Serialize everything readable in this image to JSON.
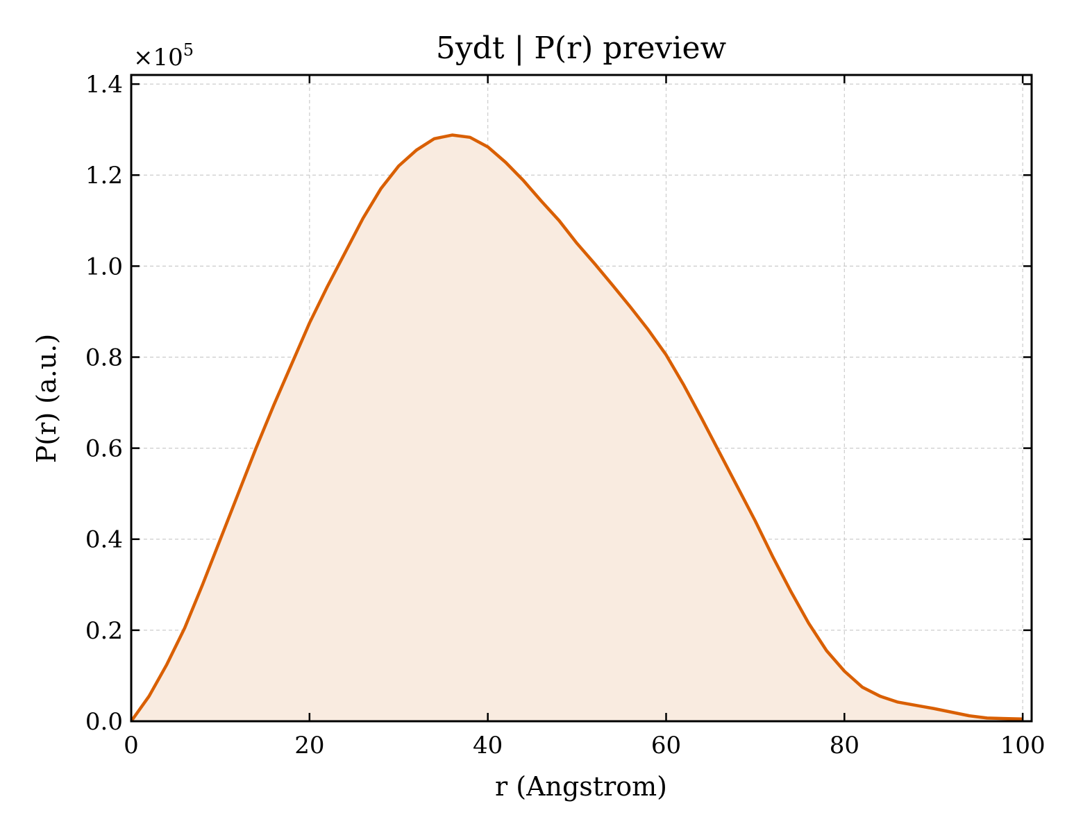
{
  "chart_data": {
    "type": "area",
    "title": "5ydt | P(r) preview",
    "xlabel": "r (Angstrom)",
    "ylabel": "P(r) (a.u.)",
    "y_scale_multiplier": "×10",
    "y_scale_exponent": "5",
    "xlim": [
      0,
      101
    ],
    "ylim": [
      0,
      1.42
    ],
    "xticks": [
      0,
      20,
      40,
      60,
      80,
      100
    ],
    "xtick_labels": [
      "0",
      "20",
      "40",
      "60",
      "80",
      "100"
    ],
    "yticks": [
      0.0,
      0.2,
      0.4,
      0.6,
      0.8,
      1.0,
      1.2,
      1.4
    ],
    "ytick_labels": [
      "0.0",
      "0.2",
      "0.4",
      "0.6",
      "0.8",
      "1.0",
      "1.2",
      "1.4"
    ],
    "grid": true,
    "colors": {
      "line": "#d95f02",
      "fill": "#f9ebe0"
    },
    "series": [
      {
        "x": [
          0,
          2,
          4,
          6,
          8,
          10,
          12,
          14,
          16,
          18,
          20,
          22,
          24,
          26,
          28,
          30,
          32,
          34,
          36,
          38,
          40,
          42,
          44,
          46,
          48,
          50,
          52,
          54,
          56,
          58,
          60,
          62,
          64,
          66,
          68,
          70,
          72,
          74,
          76,
          78,
          80,
          82,
          84,
          86,
          88,
          90,
          92,
          94,
          96,
          98,
          100
        ],
        "values": [
          0.0,
          0.055,
          0.125,
          0.205,
          0.3,
          0.4,
          0.5,
          0.6,
          0.695,
          0.785,
          0.875,
          0.955,
          1.03,
          1.105,
          1.17,
          1.22,
          1.255,
          1.28,
          1.288,
          1.283,
          1.262,
          1.228,
          1.188,
          1.143,
          1.1,
          1.05,
          1.005,
          0.958,
          0.91,
          0.86,
          0.805,
          0.738,
          0.665,
          0.59,
          0.515,
          0.44,
          0.36,
          0.285,
          0.215,
          0.155,
          0.11,
          0.075,
          0.055,
          0.042,
          0.035,
          0.028,
          0.02,
          0.012,
          0.007,
          0.006,
          0.005
        ]
      }
    ]
  }
}
